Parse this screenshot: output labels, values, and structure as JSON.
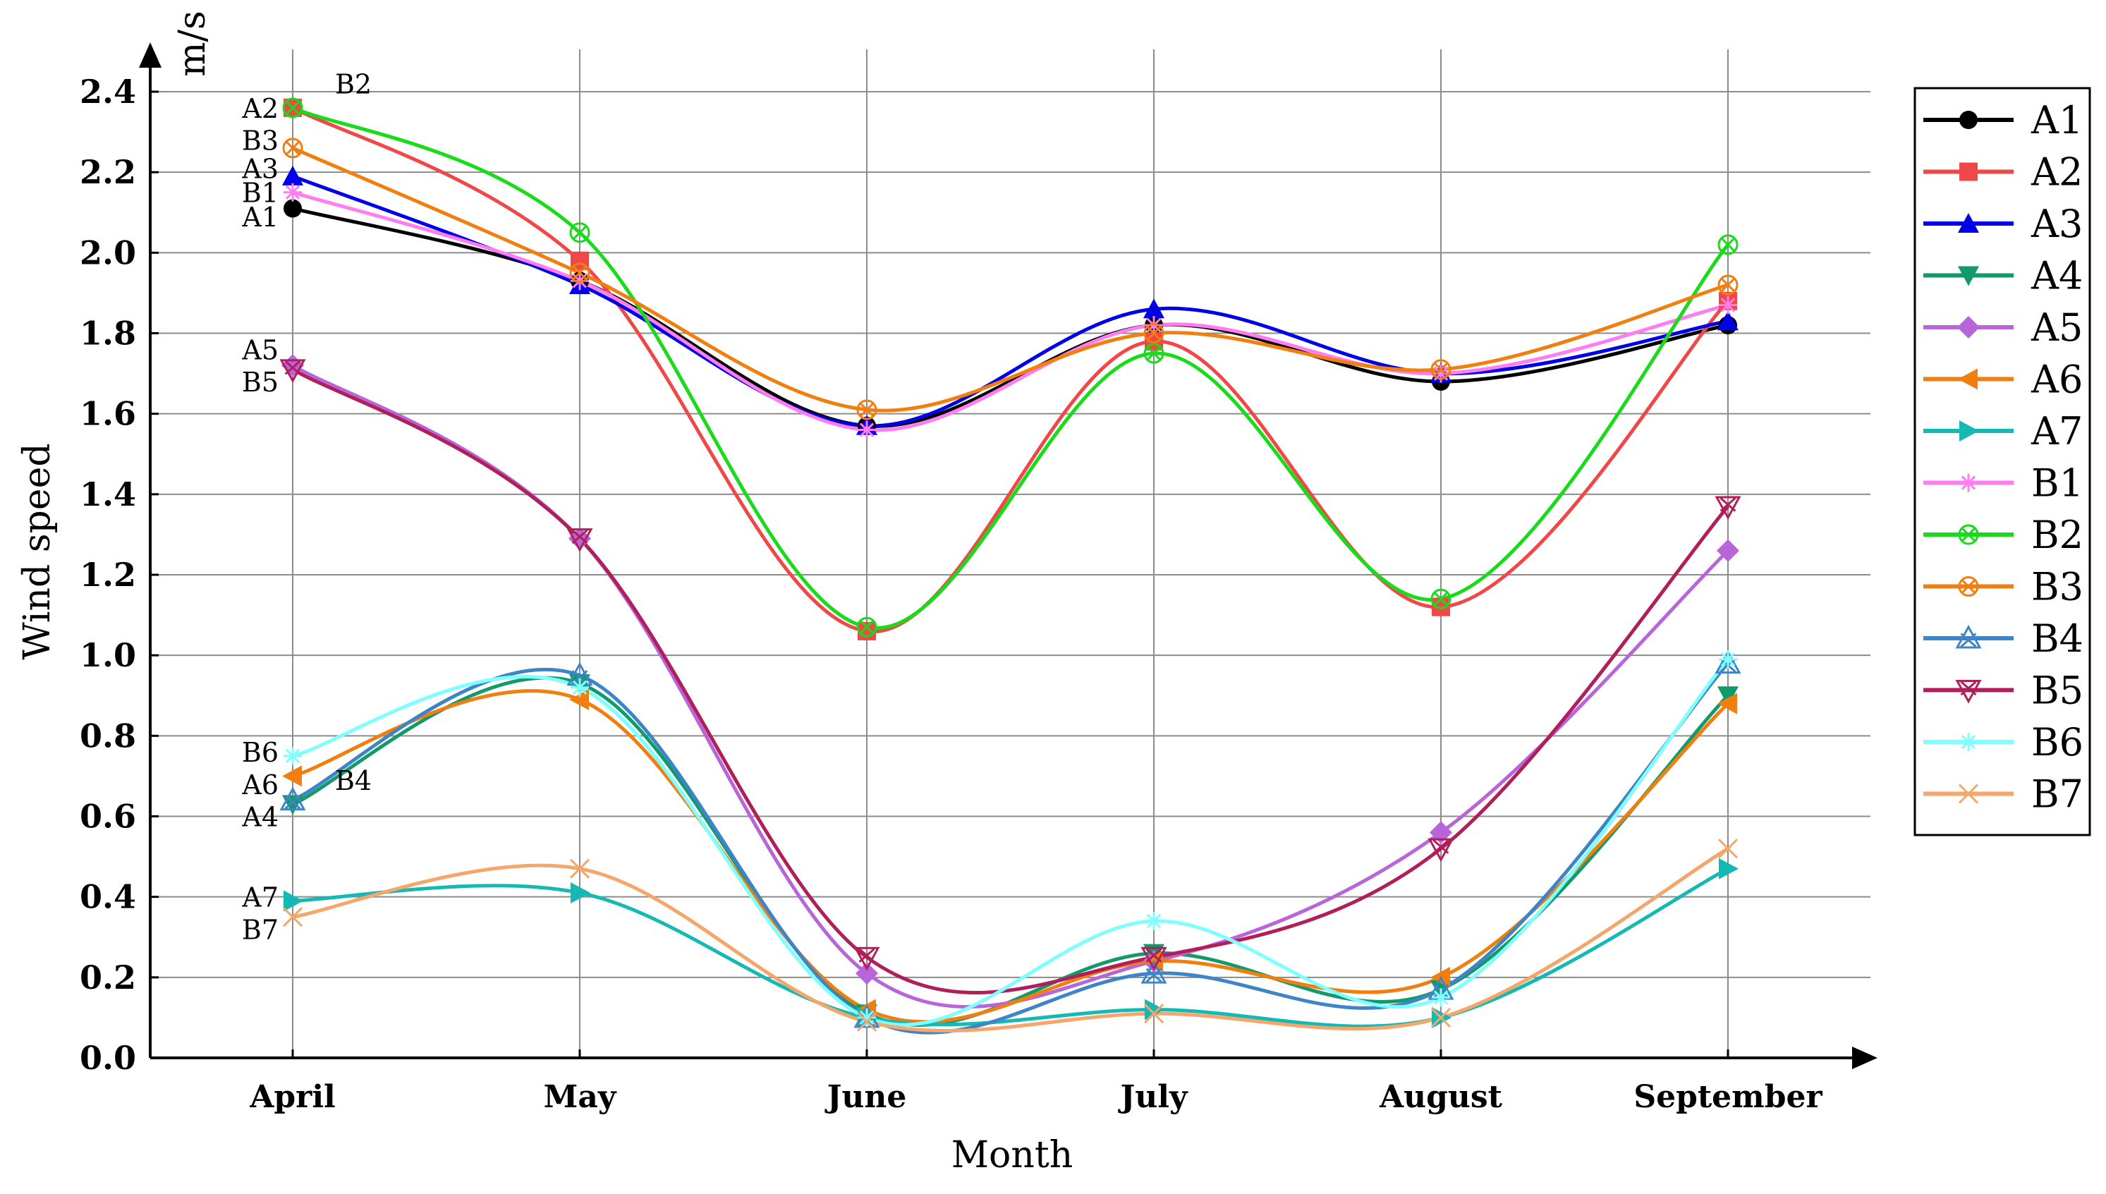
{
  "chart_data": {
    "type": "line",
    "title": "",
    "xlabel": "Month",
    "ylabel": "Wind speed",
    "yunit": "m/s",
    "categories": [
      "April",
      "May",
      "June",
      "July",
      "August",
      "September"
    ],
    "ylim": [
      0,
      2.4
    ],
    "yticks": [
      "0.0",
      "0.2",
      "0.4",
      "0.6",
      "0.8",
      "1.0",
      "1.2",
      "1.4",
      "1.6",
      "1.8",
      "2.0",
      "2.2",
      "2.4"
    ],
    "grid": true,
    "legend_position": "right",
    "series": [
      {
        "name": "A1",
        "color": "#000000",
        "marker": "circle",
        "values": [
          2.11,
          1.93,
          1.57,
          1.82,
          1.68,
          1.82
        ]
      },
      {
        "name": "A2",
        "color": "#f04848",
        "marker": "square",
        "values": [
          2.36,
          1.98,
          1.06,
          1.78,
          1.12,
          1.88
        ]
      },
      {
        "name": "A3",
        "color": "#0000e6",
        "marker": "triangle-up",
        "values": [
          2.19,
          1.92,
          1.57,
          1.86,
          1.7,
          1.83
        ]
      },
      {
        "name": "A4",
        "color": "#129a6a",
        "marker": "triangle-down",
        "values": [
          0.63,
          0.93,
          0.11,
          0.26,
          0.17,
          0.9
        ]
      },
      {
        "name": "A5",
        "color": "#b865d9",
        "marker": "diamond",
        "values": [
          1.72,
          1.29,
          0.21,
          0.24,
          0.56,
          1.26
        ]
      },
      {
        "name": "A6",
        "color": "#f07f10",
        "marker": "triangle-left",
        "values": [
          0.7,
          0.89,
          0.12,
          0.24,
          0.2,
          0.88
        ]
      },
      {
        "name": "A7",
        "color": "#15b9b4",
        "marker": "triangle-right",
        "values": [
          0.39,
          0.41,
          0.1,
          0.12,
          0.1,
          0.47
        ]
      },
      {
        "name": "B1",
        "color": "#ff7df0",
        "marker": "star",
        "values": [
          2.15,
          1.93,
          1.56,
          1.82,
          1.7,
          1.87
        ]
      },
      {
        "name": "B2",
        "color": "#1adb1a",
        "marker": "circle-x",
        "values": [
          2.36,
          2.05,
          1.07,
          1.75,
          1.14,
          2.02
        ]
      },
      {
        "name": "B3",
        "color": "#f07f10",
        "marker": "circle-x",
        "values": [
          2.26,
          1.95,
          1.61,
          1.8,
          1.71,
          1.92
        ]
      },
      {
        "name": "B4",
        "color": "#3d85c6",
        "marker": "triangle-x",
        "values": [
          0.64,
          0.95,
          0.1,
          0.21,
          0.17,
          0.98
        ]
      },
      {
        "name": "B5",
        "color": "#b01f5a",
        "marker": "triangle-down-x",
        "values": [
          1.71,
          1.29,
          0.25,
          0.25,
          0.52,
          1.37
        ]
      },
      {
        "name": "B6",
        "color": "#7fffff",
        "marker": "asterisk",
        "values": [
          0.75,
          0.92,
          0.1,
          0.34,
          0.15,
          0.99
        ]
      },
      {
        "name": "B7",
        "color": "#f5a66a",
        "marker": "x",
        "values": [
          0.35,
          0.47,
          0.09,
          0.11,
          0.1,
          0.52
        ]
      }
    ],
    "annotations": [
      {
        "text": "B2",
        "month": "April",
        "value": 2.42,
        "side": "right"
      },
      {
        "text": "A2",
        "month": "April",
        "value": 2.36,
        "side": "left"
      },
      {
        "text": "B3",
        "month": "April",
        "value": 2.28,
        "side": "left"
      },
      {
        "text": "A3",
        "month": "April",
        "value": 2.21,
        "side": "left"
      },
      {
        "text": "B1",
        "month": "April",
        "value": 2.15,
        "side": "left"
      },
      {
        "text": "A1",
        "month": "April",
        "value": 2.09,
        "side": "left"
      },
      {
        "text": "A5",
        "month": "April",
        "value": 1.76,
        "side": "left"
      },
      {
        "text": "B5",
        "month": "April",
        "value": 1.68,
        "side": "left"
      },
      {
        "text": "B6",
        "month": "April",
        "value": 0.76,
        "side": "left"
      },
      {
        "text": "A6",
        "month": "April",
        "value": 0.68,
        "side": "left"
      },
      {
        "text": "B4",
        "month": "April",
        "value": 0.69,
        "side": "right"
      },
      {
        "text": "A4",
        "month": "April",
        "value": 0.6,
        "side": "left"
      },
      {
        "text": "A7",
        "month": "April",
        "value": 0.4,
        "side": "left"
      },
      {
        "text": "B7",
        "month": "April",
        "value": 0.32,
        "side": "left"
      }
    ]
  }
}
